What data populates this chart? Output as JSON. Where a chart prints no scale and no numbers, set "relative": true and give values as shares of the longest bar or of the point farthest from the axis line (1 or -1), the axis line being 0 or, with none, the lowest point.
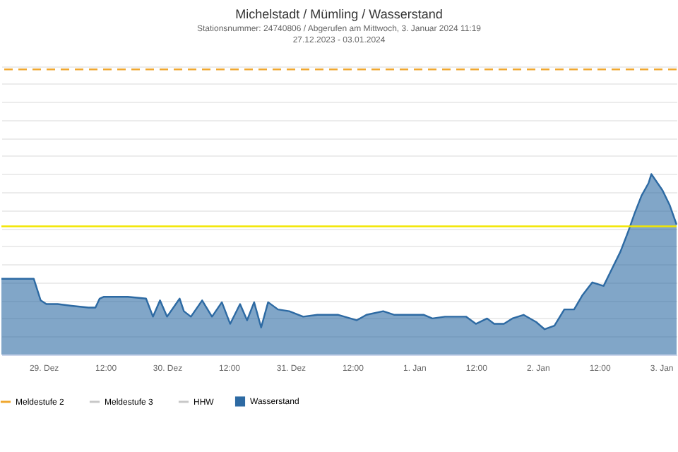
{
  "chart_data": {
    "type": "area",
    "title": "Michelstadt / Mümling / Wasserstand",
    "subtitle": "Stationsnummer: 24740806 / Abgerufen am Mittwoch, 3. Januar 2024 11:19\n27.12.2023 - 03.01.2024",
    "relative": true,
    "x": [
      "2023-12-28T15:49",
      "2023-12-28T22:06",
      "2023-12-28T23:27",
      "2023-12-29T00:33",
      "2023-12-29T02:44",
      "2023-12-29T05:27",
      "2023-12-29T08:44",
      "2023-12-29T10:05",
      "2023-12-29T10:54",
      "2023-12-29T11:44",
      "2023-12-29T16:22",
      "2023-12-29T19:55",
      "2023-12-29T21:16",
      "2023-12-29T22:38",
      "2023-12-30T00:00",
      "2023-12-30T02:27",
      "2023-12-30T03:16",
      "2023-12-30T04:38",
      "2023-12-30T06:49",
      "2023-12-30T08:44",
      "2023-12-30T10:39",
      "2023-12-30T12:16",
      "2023-12-30T14:11",
      "2023-12-30T15:33",
      "2023-12-30T16:55",
      "2023-12-30T18:17",
      "2023-12-30T19:38",
      "2023-12-30T21:33",
      "2023-12-30T23:44",
      "2023-12-31T02:27",
      "2023-12-31T05:11",
      "2023-12-31T09:17",
      "2023-12-31T12:50",
      "2023-12-31T14:44",
      "2023-12-31T18:00",
      "2023-12-31T20:11",
      "2024-01-01T01:55",
      "2024-01-01T03:33",
      "2024-01-01T06:00",
      "2024-01-01T10:05",
      "2024-01-01T12:00",
      "2024-01-01T14:11",
      "2024-01-01T15:33",
      "2024-01-01T17:27",
      "2024-01-01T19:05",
      "2024-01-01T21:16",
      "2024-01-01T23:44",
      "2024-01-02T01:22",
      "2024-01-02T03:16",
      "2024-01-02T05:11",
      "2024-01-02T07:05",
      "2024-01-02T08:44",
      "2024-01-02T10:38",
      "2024-01-02T12:49",
      "2024-01-02T14:11",
      "2024-01-02T16:05",
      "2024-01-02T17:27",
      "2024-01-02T18:49",
      "2024-01-02T20:11",
      "2024-01-02T21:33",
      "2024-01-02T22:06",
      "2024-01-03T00:16",
      "2024-01-03T01:38",
      "2024-01-03T03:00"
    ],
    "series": [
      {
        "name": "Wasserstand",
        "color": "#2d6aa3",
        "values": [
          0.42,
          0.42,
          0.3,
          0.28,
          0.28,
          0.27,
          0.26,
          0.26,
          0.31,
          0.32,
          0.32,
          0.31,
          0.21,
          0.3,
          0.21,
          0.31,
          0.24,
          0.21,
          0.3,
          0.21,
          0.29,
          0.17,
          0.28,
          0.19,
          0.29,
          0.15,
          0.29,
          0.25,
          0.24,
          0.21,
          0.22,
          0.22,
          0.19,
          0.22,
          0.24,
          0.22,
          0.22,
          0.2,
          0.21,
          0.21,
          0.17,
          0.2,
          0.17,
          0.17,
          0.2,
          0.22,
          0.18,
          0.14,
          0.16,
          0.25,
          0.25,
          0.33,
          0.4,
          0.38,
          0.46,
          0.57,
          0.67,
          0.78,
          0.88,
          0.95,
          1.0,
          0.91,
          0.83,
          0.72
        ]
      }
    ],
    "xlim": [
      "2023-12-28T15:49",
      "2024-01-03T03:00"
    ],
    "xticks": [
      {
        "value": "2023-12-29T00:00",
        "label": "29. Dez"
      },
      {
        "value": "2023-12-29T12:00",
        "label": "12:00"
      },
      {
        "value": "2023-12-30T00:00",
        "label": "30. Dez"
      },
      {
        "value": "2023-12-30T12:00",
        "label": "12:00"
      },
      {
        "value": "2023-12-31T00:00",
        "label": "31. Dez"
      },
      {
        "value": "2023-12-31T12:00",
        "label": "12:00"
      },
      {
        "value": "2024-01-01T00:00",
        "label": "1. Jan"
      },
      {
        "value": "2024-01-01T12:00",
        "label": "12:00"
      },
      {
        "value": "2024-01-02T00:00",
        "label": "2. Jan"
      },
      {
        "value": "2024-01-02T12:00",
        "label": "12:00"
      },
      {
        "value": "2024-01-03T00:00",
        "label": "3. Jan"
      }
    ],
    "ref_lines": [
      {
        "axis": "y",
        "value": 0.71,
        "label": null,
        "color": "#f2e600",
        "line_style": "solid"
      },
      {
        "axis": "y",
        "value": 1.58,
        "label": "Meldestufe 2",
        "color": "#f0a830",
        "line_style": "dashed"
      }
    ],
    "annotations": [
      "Meldestufe 3",
      "HHW"
    ],
    "grid": "y",
    "legend": "bottom left"
  }
}
